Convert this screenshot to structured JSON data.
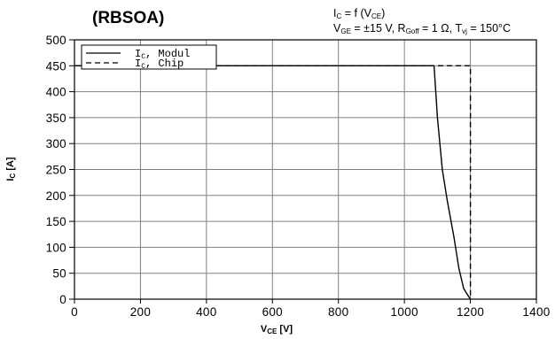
{
  "chart_data": {
    "type": "line",
    "title": "(RBSOA)",
    "formula": {
      "main": "I",
      "sub1": "C",
      "mid": " = f (V",
      "sub2": "CE",
      "end": ")"
    },
    "conditions": {
      "a": "V",
      "a_sub": "GE",
      "b": " = ±15 V, R",
      "b_sub": "Goff",
      "c": " = 1 Ω, T",
      "c_sub": "vj",
      "d": " = 150°C"
    },
    "xlabel": {
      "main": "V",
      "sub": "CE",
      "unit": " [V]"
    },
    "ylabel": {
      "main": "I",
      "sub": "C",
      "unit": " [A]"
    },
    "xlim": [
      0,
      1400
    ],
    "ylim": [
      0,
      500
    ],
    "xticks": [
      0,
      200,
      400,
      600,
      800,
      1000,
      1200,
      1400
    ],
    "yticks": [
      0,
      50,
      100,
      150,
      200,
      250,
      300,
      350,
      400,
      450,
      500
    ],
    "grid": true,
    "legend_position": "top-left",
    "series": [
      {
        "name": "Ic, Modul",
        "legend": {
          "a": "I",
          "sub": "C",
          "b": ", Modul"
        },
        "style": "solid",
        "color": "#000000",
        "x": [
          0,
          1085,
          1090,
          1100,
          1115,
          1130,
          1150,
          1165,
          1180,
          1195,
          1200
        ],
        "y": [
          450,
          450,
          450,
          350,
          250,
          190,
          120,
          60,
          20,
          5,
          0
        ]
      },
      {
        "name": "Ic, Chip",
        "legend": {
          "a": "I",
          "sub": "C",
          "b": ", Chip"
        },
        "style": "dashed",
        "color": "#000000",
        "x": [
          0,
          1200,
          1200
        ],
        "y": [
          450,
          450,
          0
        ]
      }
    ]
  }
}
